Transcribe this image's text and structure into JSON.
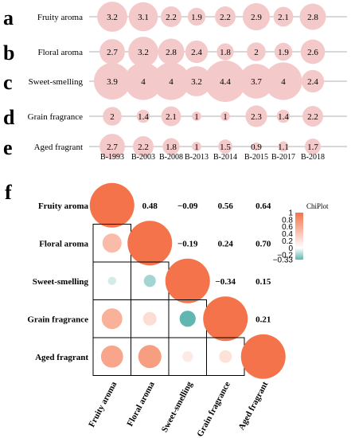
{
  "chart_data": [
    {
      "type": "bubble",
      "x_labels": [
        "B-1993",
        "B-2003",
        "B-2008",
        "B-2013",
        "B-2014",
        "B-2015",
        "B-2017",
        "B-2018"
      ],
      "rows": [
        {
          "letter": "a",
          "label": "Fruity aroma",
          "values": [
            "3.2",
            "3.1",
            "2.2",
            "1.9",
            "2.2",
            "2.9",
            "2.1",
            "2.8"
          ],
          "sizes": [
            3.2,
            3.1,
            2.2,
            1.9,
            2.2,
            2.9,
            2.1,
            2.8
          ]
        },
        {
          "letter": "b",
          "label": "Floral aroma",
          "values": [
            "2.7",
            "3.2",
            "2.8",
            "2.4",
            "1.8",
            "2",
            "1.9",
            "2.6"
          ],
          "sizes": [
            2.7,
            3.2,
            2.8,
            2.4,
            1.8,
            2,
            1.9,
            2.6
          ]
        },
        {
          "letter": "c",
          "label": "Sweet-smelling",
          "values": [
            "3.9",
            "4",
            "4",
            "3.2",
            "4.4",
            "3.7",
            "4",
            "2.4"
          ],
          "sizes": [
            3.9,
            4,
            4,
            3.2,
            4.4,
            3.7,
            4,
            2.4
          ]
        },
        {
          "letter": "d",
          "label": "Grain fragrance",
          "values": [
            "2",
            "1.4",
            "2.1",
            "1",
            "1",
            "2.3",
            "1.4",
            "2.2"
          ],
          "sizes": [
            2,
            1.4,
            2.1,
            1,
            1,
            2.3,
            1.4,
            2.2
          ]
        },
        {
          "letter": "e",
          "label": "Aged fragrant",
          "values": [
            "2.7",
            "2.2",
            "1.8",
            "1",
            "1.5",
            "0.9",
            "1.1",
            "1.7"
          ],
          "sizes": [
            2.7,
            2.2,
            1.8,
            1,
            1.5,
            0.9,
            1.1,
            1.7
          ]
        }
      ],
      "bubble_color": "#f4c9c9",
      "line_color": "#999999"
    },
    {
      "type": "heatmap",
      "panel_letter": "f",
      "variables": [
        "Fruity aroma",
        "Floral aroma",
        "Sweet-smelling",
        "Grain fragrance",
        "Aged fragrant"
      ],
      "upper_text": [
        [
          null,
          "0.48",
          "−0.09",
          "0.56",
          "0.64"
        ],
        [
          null,
          null,
          "−0.19",
          "0.24",
          "0.70"
        ],
        [
          null,
          null,
          null,
          "−0.34",
          "0.15"
        ],
        [
          null,
          null,
          null,
          null,
          "0.21"
        ],
        [
          null,
          null,
          null,
          null,
          null
        ]
      ],
      "matrix": [
        [
          1,
          0.48,
          -0.09,
          0.56,
          0.64
        ],
        [
          0.48,
          1,
          -0.19,
          0.24,
          0.7
        ],
        [
          -0.09,
          -0.19,
          1,
          -0.34,
          0.15
        ],
        [
          0.56,
          0.24,
          -0.34,
          1,
          0.21
        ],
        [
          0.64,
          0.7,
          0.15,
          0.21,
          1
        ]
      ],
      "legend": {
        "title": "ChiPlot",
        "ticks": [
          "1",
          "0.8",
          "0.6",
          "0.4",
          "0.2",
          "0",
          "−0.2",
          "−0.33"
        ],
        "tick_values": [
          1,
          0.8,
          0.6,
          0.4,
          0.2,
          0,
          -0.2,
          -0.33
        ],
        "range": [
          -0.33,
          1
        ]
      },
      "colors": {
        "positive": "#f4734a",
        "negative": "#5fb7b0",
        "zero": "#ffffff"
      }
    }
  ]
}
